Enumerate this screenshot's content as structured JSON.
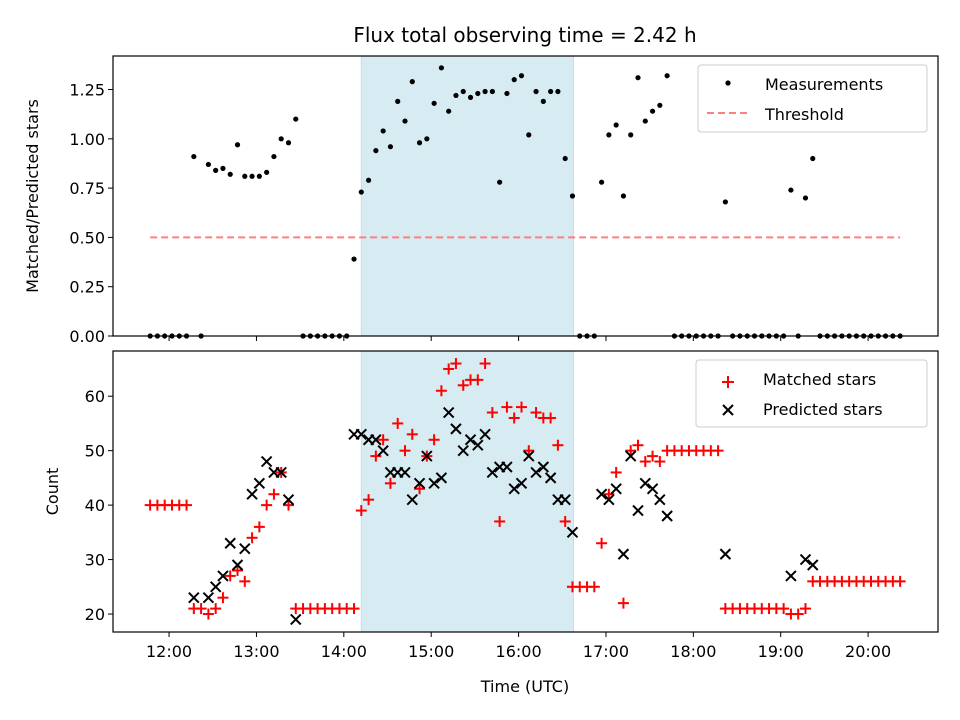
{
  "figure": {
    "title": "Flux total observing time = 2.42 h",
    "shaded_interval": {
      "start": "14:12",
      "end": "16:37",
      "color": "#add8e6",
      "alpha": 0.5
    }
  },
  "chart_data": [
    {
      "type": "scatter",
      "panel": "top",
      "title": "Flux total observing time = 2.42 h",
      "xlabel": "",
      "ylabel": "Matched/Predicted stars",
      "xlim": [
        "11:21",
        "20:48"
      ],
      "ylim": [
        0,
        1.42
      ],
      "yticks": [
        0.0,
        0.25,
        0.5,
        0.75,
        1.0,
        1.25
      ],
      "ytick_labels": [
        "0.00",
        "0.25",
        "0.50",
        "0.75",
        "1.00",
        "1.25"
      ],
      "xticks": [
        "12:00",
        "13:00",
        "14:00",
        "15:00",
        "16:00",
        "17:00",
        "18:00",
        "19:00",
        "20:00"
      ],
      "grid": false,
      "legend": {
        "placement": "top-right",
        "entries": [
          {
            "label": "Measurements",
            "marker": "dot",
            "color": "#000000"
          },
          {
            "label": "Threshold",
            "marker": "dashed-line",
            "color": "#ff7f7f"
          }
        ]
      },
      "threshold": {
        "value": 0.5,
        "x_start": "11:47",
        "x_end": "20:22",
        "color": "#ff7f7f"
      },
      "start_time": "11:47",
      "cadence_minutes": 5,
      "series": [
        {
          "name": "Measurements",
          "color": "#000000",
          "values": [
            0,
            0,
            0,
            0,
            0,
            0,
            0.91,
            0,
            0.87,
            0.84,
            0.85,
            0.82,
            0.97,
            0.81,
            0.81,
            0.81,
            0.83,
            0.91,
            1.0,
            0.98,
            1.1,
            0,
            0,
            0,
            0,
            0,
            0,
            0,
            0.39,
            0.73,
            0.79,
            0.94,
            1.04,
            0.96,
            1.19,
            1.09,
            1.29,
            0.98,
            1.0,
            1.18,
            1.36,
            1.14,
            1.22,
            1.24,
            1.21,
            1.23,
            1.24,
            1.24,
            0.78,
            1.23,
            1.3,
            1.32,
            1.02,
            1.24,
            1.19,
            1.24,
            1.24,
            0.9,
            0.71,
            0,
            0,
            0,
            0.78,
            1.02,
            1.07,
            0.71,
            1.02,
            1.31,
            1.09,
            1.14,
            1.17,
            1.32,
            0,
            0,
            0,
            0,
            0,
            0,
            0,
            0.68,
            0,
            0,
            0,
            0,
            0,
            0,
            0,
            0,
            0.74,
            0,
            0.7,
            0.9,
            0,
            0,
            0,
            0,
            0,
            0,
            0,
            0,
            0,
            0,
            0,
            0
          ]
        }
      ]
    },
    {
      "type": "scatter",
      "panel": "bottom",
      "xlabel": "Time (UTC)",
      "ylabel": "Count",
      "xlim": [
        "11:21",
        "20:48"
      ],
      "ylim": [
        16.7,
        68.3
      ],
      "yticks": [
        20,
        30,
        40,
        50,
        60
      ],
      "ytick_labels": [
        "20",
        "30",
        "40",
        "50",
        "60"
      ],
      "xticks": [
        "12:00",
        "13:00",
        "14:00",
        "15:00",
        "16:00",
        "17:00",
        "18:00",
        "19:00",
        "20:00"
      ],
      "xtick_labels": [
        "12:00",
        "13:00",
        "14:00",
        "15:00",
        "16:00",
        "17:00",
        "18:00",
        "19:00",
        "20:00"
      ],
      "grid": false,
      "legend": {
        "placement": "top-right",
        "entries": [
          {
            "label": "Matched stars",
            "marker": "plus",
            "color": "#ff0000"
          },
          {
            "label": "Predicted stars",
            "marker": "x",
            "color": "#000000"
          }
        ]
      },
      "start_time": "11:47",
      "cadence_minutes": 5,
      "series": [
        {
          "name": "Matched stars",
          "marker": "plus",
          "color": "#ff0000",
          "values": [
            40,
            40,
            40,
            40,
            40,
            40,
            21,
            21,
            20,
            21,
            23,
            27,
            28,
            26,
            34,
            36,
            40,
            42,
            46,
            40,
            21,
            21,
            21,
            21,
            21,
            21,
            21,
            21,
            21,
            39,
            41,
            49,
            52,
            44,
            55,
            50,
            53,
            43,
            49,
            52,
            61,
            65,
            66,
            62,
            63,
            63,
            66,
            57,
            37,
            58,
            56,
            58,
            50,
            57,
            56,
            56,
            51,
            37,
            25,
            25,
            25,
            25,
            33,
            42,
            46,
            22,
            50,
            51,
            48,
            49,
            48,
            50,
            50,
            50,
            50,
            50,
            50,
            50,
            50,
            21,
            21,
            21,
            21,
            21,
            21,
            21,
            21,
            21,
            20,
            20,
            21,
            26,
            26,
            26,
            26,
            26,
            26,
            26,
            26,
            26,
            26,
            26,
            26,
            26
          ]
        },
        {
          "name": "Predicted stars",
          "marker": "x",
          "color": "#000000",
          "values": [
            null,
            null,
            null,
            null,
            null,
            null,
            23,
            null,
            23,
            25,
            27,
            33,
            29,
            32,
            42,
            44,
            48,
            46,
            46,
            41,
            19,
            null,
            null,
            null,
            null,
            null,
            null,
            null,
            53,
            53,
            52,
            52,
            50,
            46,
            46,
            46,
            41,
            44,
            49,
            44,
            45,
            57,
            54,
            50,
            52,
            51,
            53,
            46,
            47,
            47,
            43,
            44,
            49,
            46,
            47,
            45,
            41,
            41,
            35,
            null,
            null,
            null,
            42,
            41,
            43,
            31,
            49,
            39,
            44,
            43,
            41,
            38,
            null,
            null,
            null,
            null,
            null,
            null,
            null,
            31,
            null,
            null,
            null,
            null,
            null,
            null,
            null,
            null,
            27,
            null,
            30,
            29,
            null,
            null,
            null,
            null,
            null,
            null,
            null,
            null,
            null,
            null,
            null,
            null
          ]
        }
      ]
    }
  ]
}
